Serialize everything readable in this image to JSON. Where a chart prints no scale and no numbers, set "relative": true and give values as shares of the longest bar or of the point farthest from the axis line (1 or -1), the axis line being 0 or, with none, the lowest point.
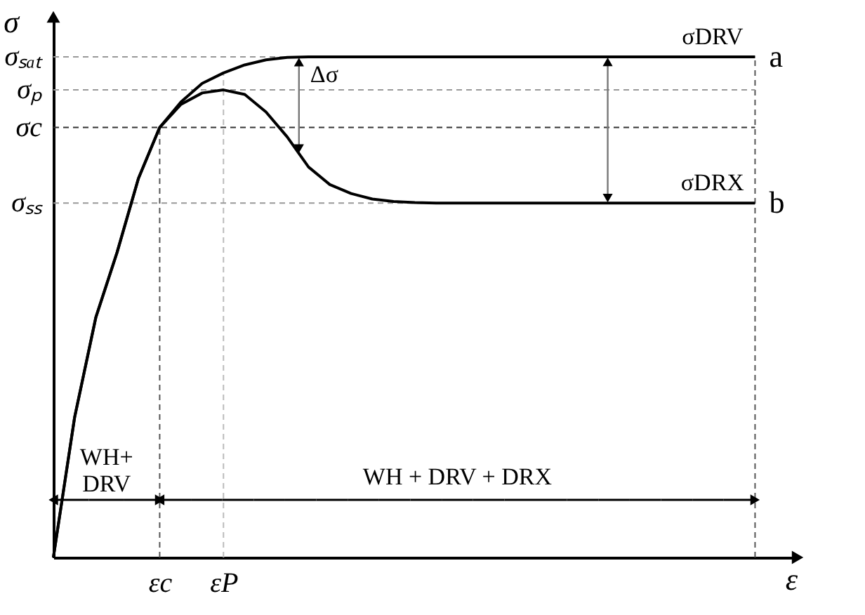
{
  "chart_data": {
    "type": "line",
    "relative": true,
    "xlabel": "ε",
    "ylabel": "σ",
    "legend": false,
    "grid": false,
    "line_style": "solid",
    "marker": "none",
    "categories": [
      null,
      null,
      null,
      null,
      null,
      "εc",
      null,
      null,
      "εP",
      null,
      null,
      null,
      null,
      null,
      null,
      null,
      null,
      null,
      null,
      null,
      null,
      null,
      null,
      null,
      null,
      null,
      null,
      null,
      null,
      null,
      null,
      null,
      null,
      null
    ],
    "series": [
      {
        "name": "a",
        "color": "#000000",
        "values": [
          0,
          0.28,
          0.48,
          0.61,
          0.757,
          0.859,
          0.91,
          0.947,
          0.968,
          0.984,
          0.994,
          0.999,
          1,
          1,
          1,
          1,
          1,
          1,
          1,
          1,
          1,
          1,
          1,
          1,
          1,
          1,
          1,
          1,
          1,
          1,
          1,
          1,
          1,
          1
        ]
      },
      {
        "name": "b",
        "color": "#000000",
        "values": [
          0,
          0.28,
          0.48,
          0.61,
          0.757,
          0.859,
          0.905,
          0.928,
          0.934,
          0.925,
          0.89,
          0.84,
          0.78,
          0.745,
          0.727,
          0.716,
          0.711,
          0.709,
          0.708,
          0.708,
          0.708,
          0.708,
          0.708,
          0.708,
          0.708,
          0.708,
          0.708,
          0.708,
          0.708,
          0.708,
          0.708,
          0.708,
          0.708,
          0.708
        ]
      }
    ],
    "ref_lines": [
      {
        "axis": "y",
        "value": 1,
        "label": "σₛₐₜ",
        "line_style": "dashed",
        "color": "#999999"
      },
      {
        "axis": "y",
        "value": 0.934,
        "label": "σₚ",
        "line_style": "dashed",
        "color": "#999999"
      },
      {
        "axis": "y",
        "value": 0.859,
        "label": "σc",
        "line_style": "dashed",
        "color": "#333333"
      },
      {
        "axis": "y",
        "value": 0.708,
        "label": "σₛₛ",
        "line_style": "dashed",
        "color": "#999999"
      }
    ],
    "annotations": [
      "σDRV",
      "σDRX",
      "Δσ",
      "WH+\nDRV",
      "WH + DRV + DRX"
    ]
  }
}
